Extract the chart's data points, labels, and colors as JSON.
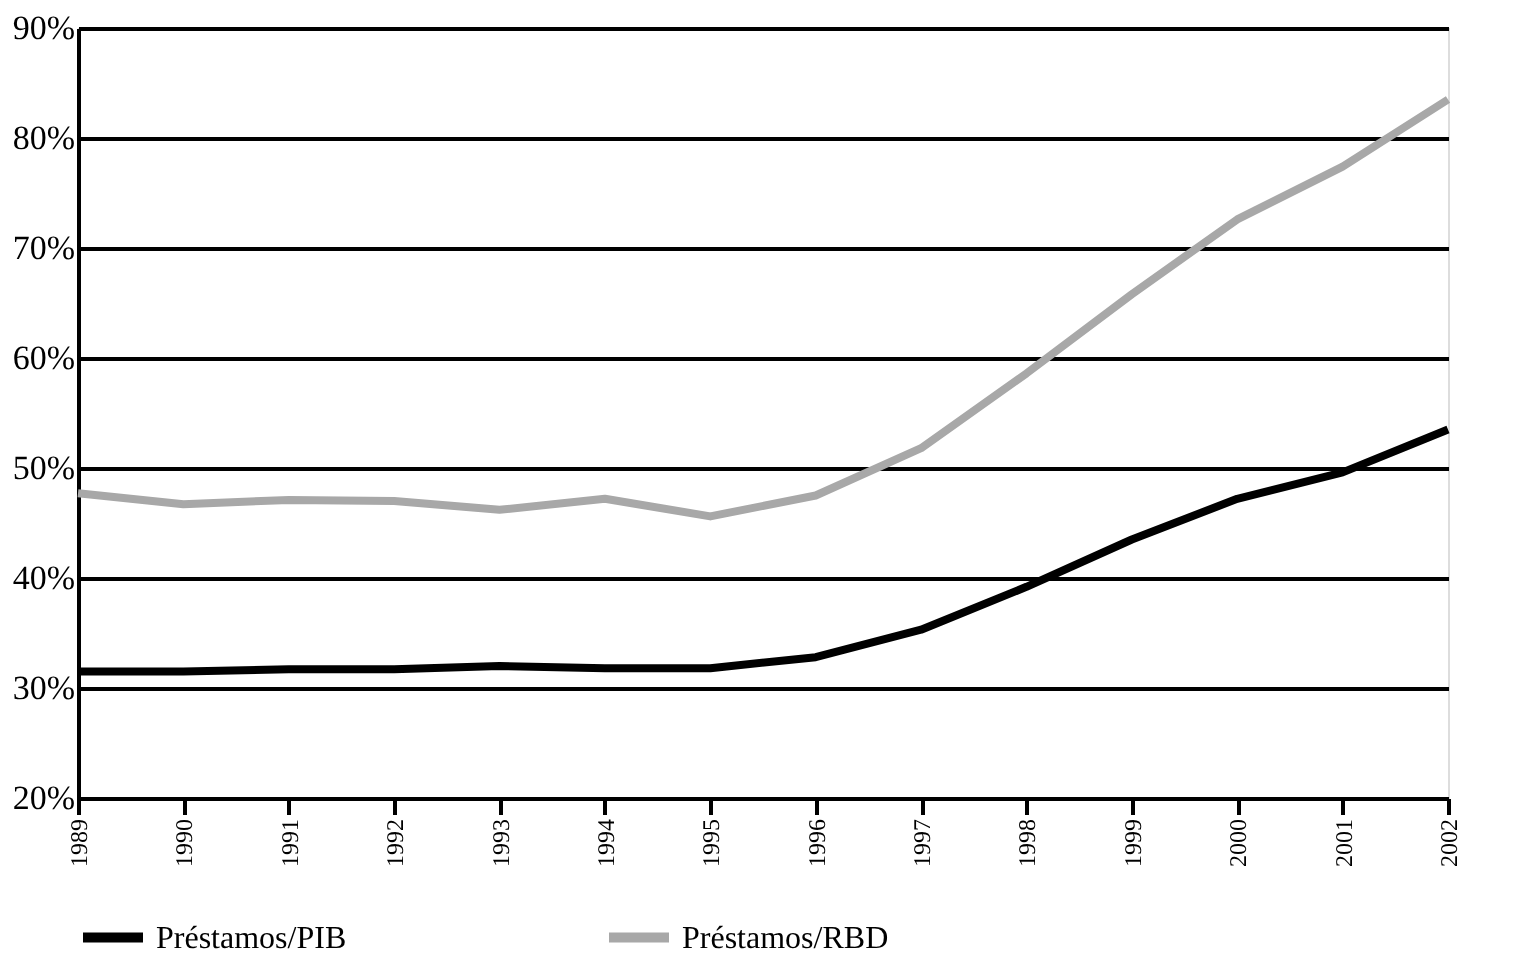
{
  "chart_data": {
    "type": "line",
    "categories": [
      "1989",
      "1990",
      "1991",
      "1992",
      "1993",
      "1994",
      "1995",
      "1996",
      "1997",
      "1998",
      "1999",
      "2000",
      "2001",
      "2002"
    ],
    "series": [
      {
        "name": "Préstamos/PIB",
        "color": "#000000",
        "values": [
          31.5,
          31.5,
          31.7,
          31.7,
          32.0,
          31.8,
          31.8,
          32.8,
          35.3,
          39.2,
          43.5,
          47.2,
          49.6,
          53.5
        ]
      },
      {
        "name": "Préstamos/RBD",
        "color": "#a8a8a8",
        "values": [
          47.7,
          46.7,
          47.1,
          47.0,
          46.2,
          47.2,
          45.6,
          47.5,
          51.8,
          58.6,
          65.8,
          72.6,
          77.4,
          83.5
        ]
      }
    ],
    "ylim": [
      20,
      90
    ],
    "yticks": [
      {
        "value": 20,
        "label": "20%"
      },
      {
        "value": 30,
        "label": "30%"
      },
      {
        "value": 40,
        "label": "40%"
      },
      {
        "value": 50,
        "label": "50%"
      },
      {
        "value": 60,
        "label": "60%"
      },
      {
        "value": 70,
        "label": "70%"
      },
      {
        "value": 80,
        "label": "80%"
      },
      {
        "value": 90,
        "label": "90%"
      }
    ],
    "grid": "y",
    "legend": "bottom",
    "marker": "none",
    "line_style": "solid"
  }
}
